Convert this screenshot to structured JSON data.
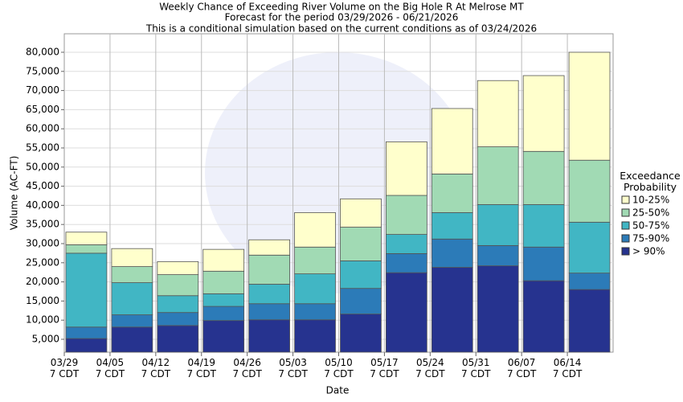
{
  "chart_data": {
    "type": "stacked_bar",
    "title": "Weekly Chance of Exceeding River Volume on the Big Hole R At Melrose MT",
    "subtitle": "Forecast for the period 03/29/2026 - 06/21/2026",
    "note": "This is a conditional simulation based on the current conditions as of 03/24/2026",
    "x_label": "Date",
    "y_label": "Volume (AC-FT)",
    "legend_title": "Exceedance\nProbability",
    "categories": [
      "03/29\n7 CDT",
      "04/05\n7 CDT",
      "04/12\n7 CDT",
      "04/19\n7 CDT",
      "04/26\n7 CDT",
      "05/03\n7 CDT",
      "05/10\n7 CDT",
      "05/17\n7 CDT",
      "05/24\n7 CDT",
      "05/31\n7 CDT",
      "06/07\n7 CDT",
      "06/14\n7 CDT"
    ],
    "series": [
      {
        "name": "> 90%",
        "color": "#26338f",
        "values": [
          5200,
          8200,
          8600,
          9900,
          10100,
          10100,
          11600,
          22400,
          23800,
          24200,
          20300,
          18000
        ]
      },
      {
        "name": "75-90%",
        "color": "#2c7bb8",
        "values": [
          3000,
          3200,
          3400,
          3700,
          4200,
          4200,
          6700,
          5000,
          7400,
          5300,
          8800,
          4300
        ]
      },
      {
        "name": "50-75%",
        "color": "#41b6c4",
        "values": [
          19300,
          8400,
          4400,
          3300,
          5100,
          7800,
          7200,
          5000,
          6900,
          10700,
          11100,
          13300
        ]
      },
      {
        "name": "25-50%",
        "color": "#a1dab4",
        "values": [
          2200,
          4200,
          5500,
          5900,
          7600,
          7000,
          8800,
          10200,
          10100,
          15100,
          13900,
          16200
        ]
      },
      {
        "name": "10-25%",
        "color": "#ffffcc",
        "values": [
          3300,
          4700,
          3400,
          5700,
          4000,
          9000,
          7400,
          14000,
          17100,
          17300,
          19800,
          28200
        ]
      }
    ],
    "ylim": [
      1640,
      84830
    ],
    "yticks": [
      {
        "value": 5000,
        "label": "5,000"
      },
      {
        "value": 10000,
        "label": "10,000"
      },
      {
        "value": 15000,
        "label": "15,000"
      },
      {
        "value": 20000,
        "label": "20,000"
      },
      {
        "value": 25000,
        "label": "25,000"
      },
      {
        "value": 30000,
        "label": "30,000"
      },
      {
        "value": 35000,
        "label": "35,000"
      },
      {
        "value": 40000,
        "label": "40,000"
      },
      {
        "value": 45000,
        "label": "45,000"
      },
      {
        "value": 50000,
        "label": "50,000"
      },
      {
        "value": 55000,
        "label": "55,000"
      },
      {
        "value": 60000,
        "label": "60,000"
      },
      {
        "value": 65000,
        "label": "65,000"
      },
      {
        "value": 70000,
        "label": "70,000"
      },
      {
        "value": 75000,
        "label": "75,000"
      },
      {
        "value": 80000,
        "label": "80,000"
      }
    ],
    "grid": true
  }
}
